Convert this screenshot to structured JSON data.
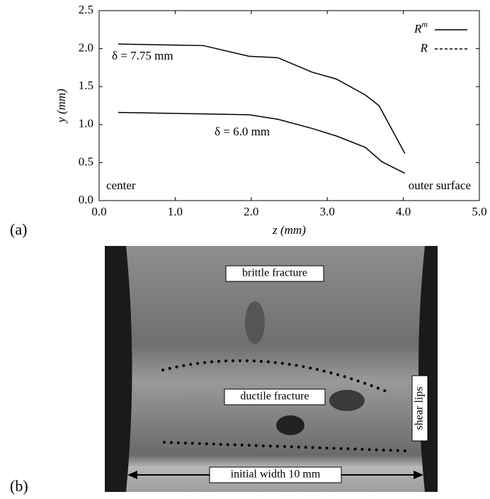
{
  "chart_data": {
    "type": "line",
    "xlabel": "z (mm)",
    "ylabel": "y (mm)",
    "xlim": [
      0,
      5
    ],
    "ylim": [
      0,
      2.5
    ],
    "xticks": [
      {
        "value": 0,
        "label": "0.0"
      },
      {
        "value": 1,
        "label": "1.0"
      },
      {
        "value": 2,
        "label": "2.0"
      },
      {
        "value": 3,
        "label": "3.0"
      },
      {
        "value": 4,
        "label": "4.0"
      },
      {
        "value": 5,
        "label": "5.0"
      }
    ],
    "yticks": [
      {
        "value": 0,
        "label": "0.0"
      },
      {
        "value": 0.5,
        "label": "0.5"
      },
      {
        "value": 1,
        "label": "1.0"
      },
      {
        "value": 1.5,
        "label": "1.5"
      },
      {
        "value": 2,
        "label": "2.0"
      },
      {
        "value": 2.5,
        "label": "2.5"
      }
    ],
    "series": [
      {
        "color": "#000000",
        "x": [
          0.25,
          1.37,
          1.97,
          2.35,
          2.8,
          3.12,
          3.5,
          3.68,
          4.02
        ],
        "values": [
          2.06,
          2.04,
          1.9,
          1.88,
          1.69,
          1.6,
          1.39,
          1.25,
          0.62
        ]
      },
      {
        "color": "#000000",
        "x": [
          0.25,
          1.97,
          2.35,
          2.8,
          3.12,
          3.5,
          3.72,
          4.02
        ],
        "values": [
          1.16,
          1.13,
          1.07,
          0.95,
          0.85,
          0.7,
          0.51,
          0.36
        ]
      }
    ],
    "legend": [
      {
        "text": "R",
        "sup": "m",
        "style": "solid"
      },
      {
        "text": "R",
        "style": "dashed"
      }
    ],
    "annotations": [
      "δ = 7.75 mm",
      "δ = 6.0 mm",
      "center",
      "outer surface"
    ]
  },
  "panel_labels": [
    "(a)",
    "(b)"
  ],
  "photo": {
    "labels": [
      "brittle fracture",
      "ductile fracture",
      "shear lips",
      "initial width 10 mm"
    ]
  }
}
